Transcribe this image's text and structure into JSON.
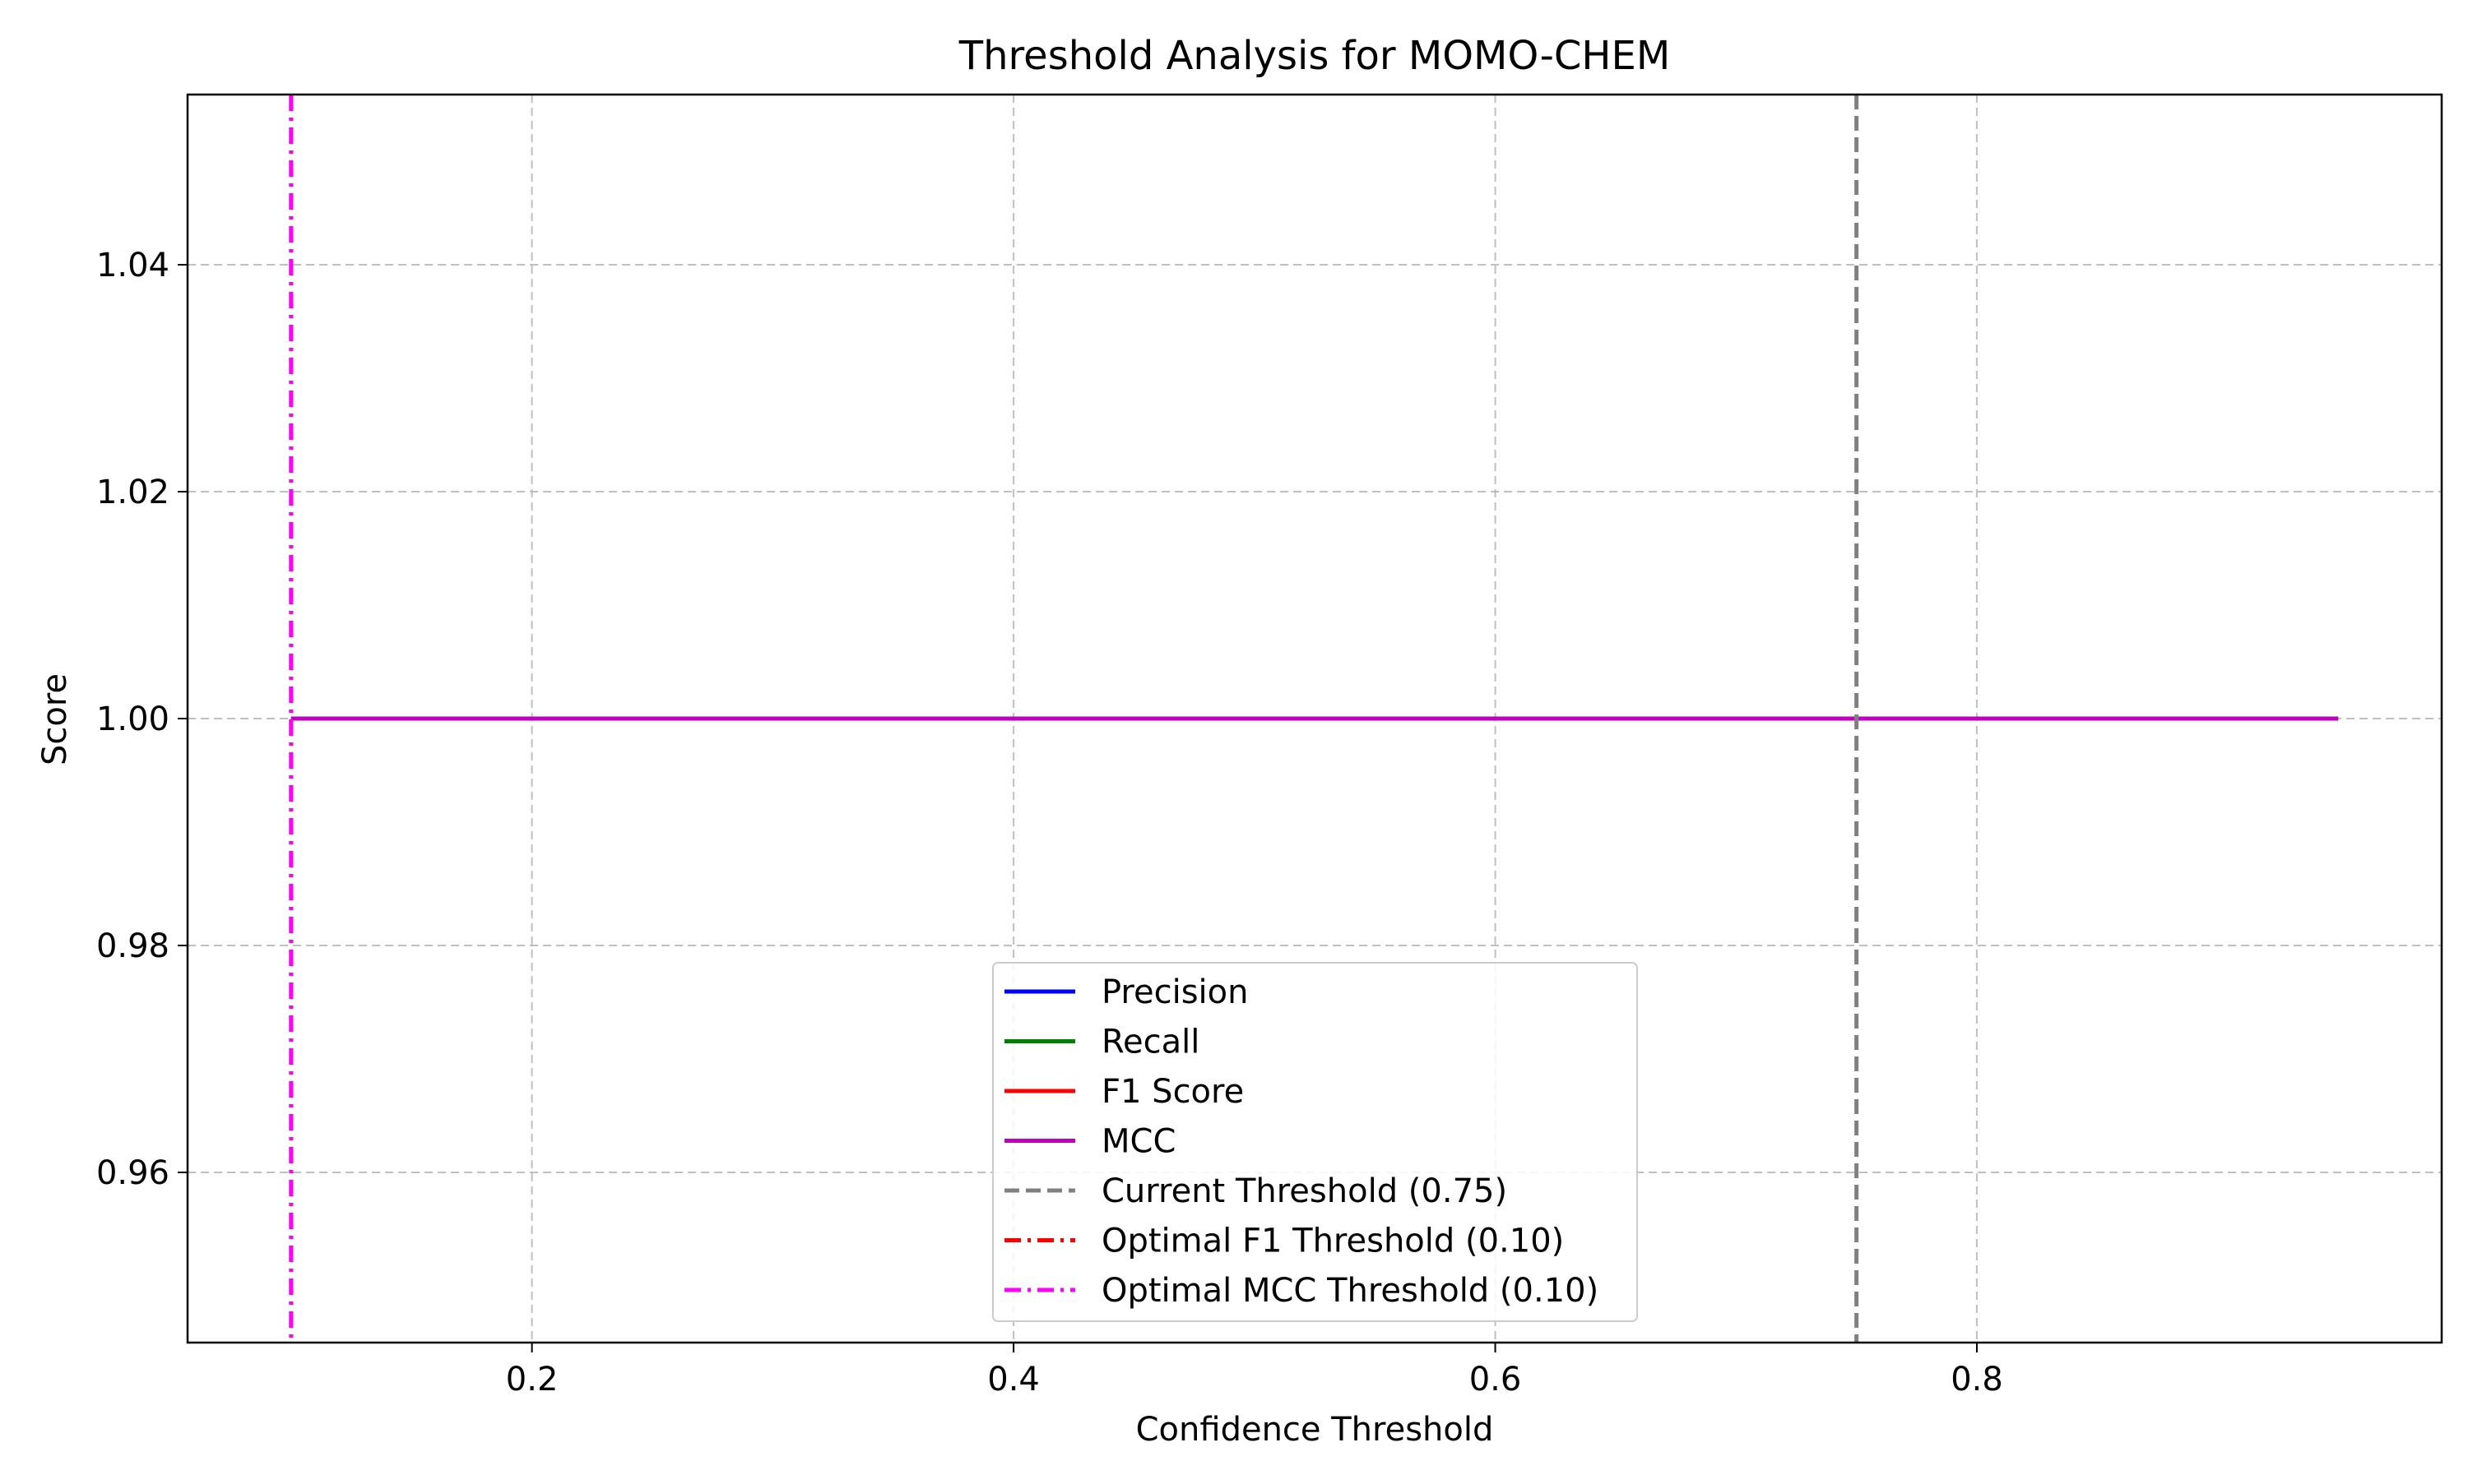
{
  "chart_data": {
    "type": "line",
    "title": "Threshold Analysis for MOMO-CHEM",
    "xlabel": "Confidence Threshold",
    "ylabel": "Score",
    "xlim": [
      0.057,
      0.993
    ],
    "ylim": [
      0.945,
      1.055
    ],
    "xticks": [
      0.2,
      0.4,
      0.6,
      0.8
    ],
    "xtick_labels": [
      "0.2",
      "0.4",
      "0.6",
      "0.8"
    ],
    "yticks": [
      0.96,
      0.98,
      1.0,
      1.02,
      1.04
    ],
    "ytick_labels": [
      "0.96",
      "0.98",
      "1.00",
      "1.02",
      "1.04"
    ],
    "grid": true,
    "legend_position": "lower-center",
    "series": [
      {
        "name": "Precision",
        "color": "#0000ff",
        "style": "solid",
        "x": [
          0.1,
          0.95
        ],
        "y": [
          1.0,
          1.0
        ]
      },
      {
        "name": "Recall",
        "color": "#008000",
        "style": "solid",
        "x": [
          0.1,
          0.95
        ],
        "y": [
          1.0,
          1.0
        ]
      },
      {
        "name": "F1 Score",
        "color": "#ff0000",
        "style": "solid",
        "x": [
          0.1,
          0.95
        ],
        "y": [
          1.0,
          1.0
        ]
      },
      {
        "name": "MCC",
        "color": "#bf00bf",
        "style": "solid",
        "x": [
          0.1,
          0.95
        ],
        "y": [
          1.0,
          1.0
        ]
      }
    ],
    "vlines": [
      {
        "name": "Current Threshold (0.75)",
        "x": 0.75,
        "color": "#808080",
        "style": "dashed"
      },
      {
        "name": "Optimal F1 Threshold (0.10)",
        "x": 0.1,
        "color": "#ff0000",
        "style": "dashdot"
      },
      {
        "name": "Optimal MCC Threshold (0.10)",
        "x": 0.1,
        "color": "#ff00ff",
        "style": "dashdot"
      }
    ]
  }
}
